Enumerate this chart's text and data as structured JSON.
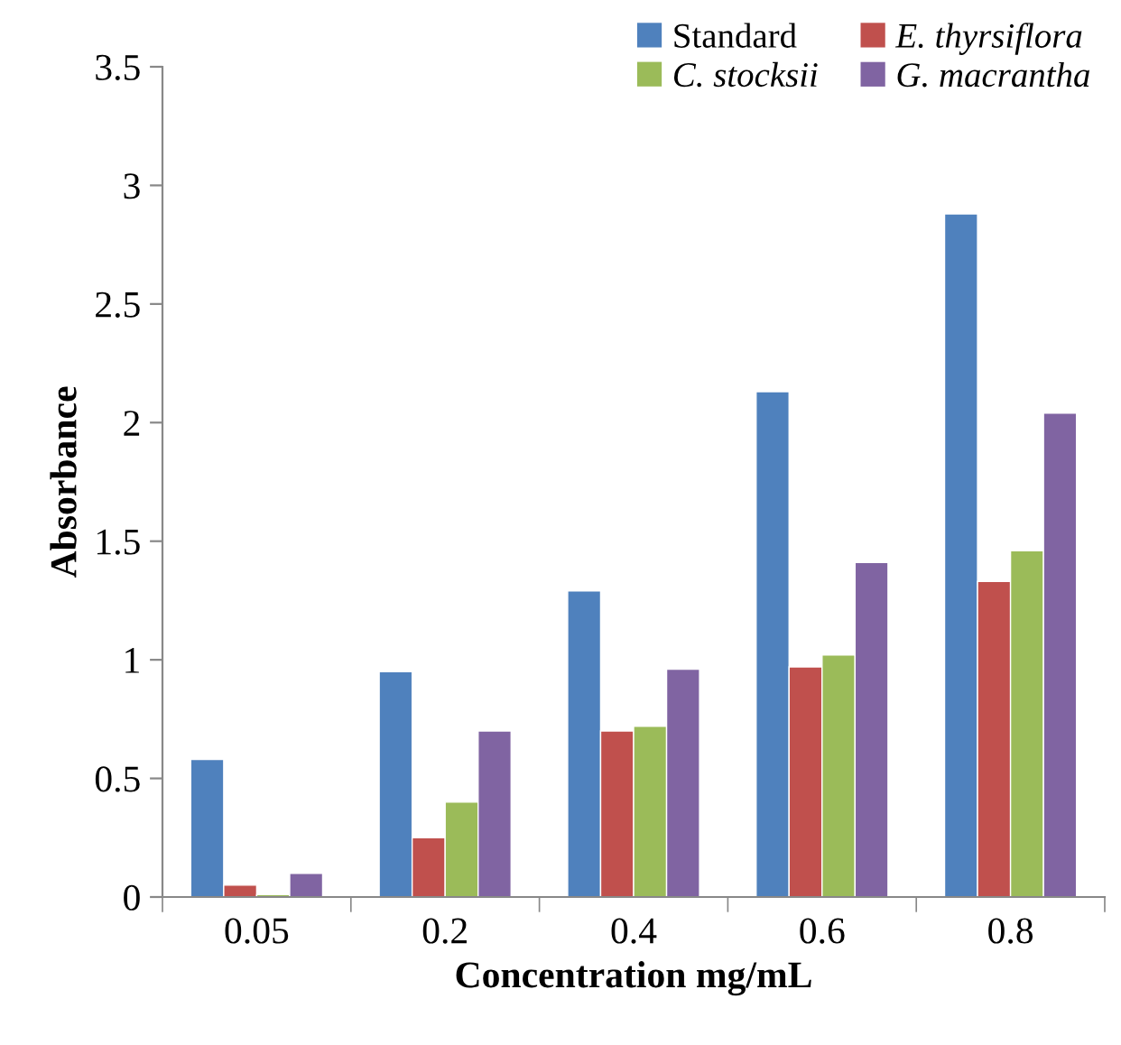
{
  "chart_data": {
    "type": "bar",
    "xlabel": "Concentration mg/mL",
    "ylabel": "Absorbance",
    "categories": [
      "0.05",
      "0.2",
      "0.4",
      "0.6",
      "0.8"
    ],
    "series": [
      {
        "name": "Standard",
        "color": "#4f81bd",
        "values": [
          0.58,
          0.95,
          1.29,
          2.13,
          2.88
        ]
      },
      {
        "name": "E. thyrsiflora",
        "color": "#c0504d",
        "values": [
          0.05,
          0.25,
          0.7,
          0.97,
          1.33
        ]
      },
      {
        "name": "C. stocksii",
        "color": "#9bbb59",
        "values": [
          0.01,
          0.4,
          0.72,
          1.02,
          1.46
        ]
      },
      {
        "name": "G. macrantha",
        "color": "#8064a2",
        "values": [
          0.1,
          0.7,
          0.96,
          1.41,
          2.04
        ]
      }
    ],
    "ylim": [
      0,
      3.5
    ],
    "yticks": [
      0,
      0.5,
      1,
      1.5,
      2,
      2.5,
      3,
      3.5
    ],
    "grid": false,
    "legend": "top right"
  }
}
